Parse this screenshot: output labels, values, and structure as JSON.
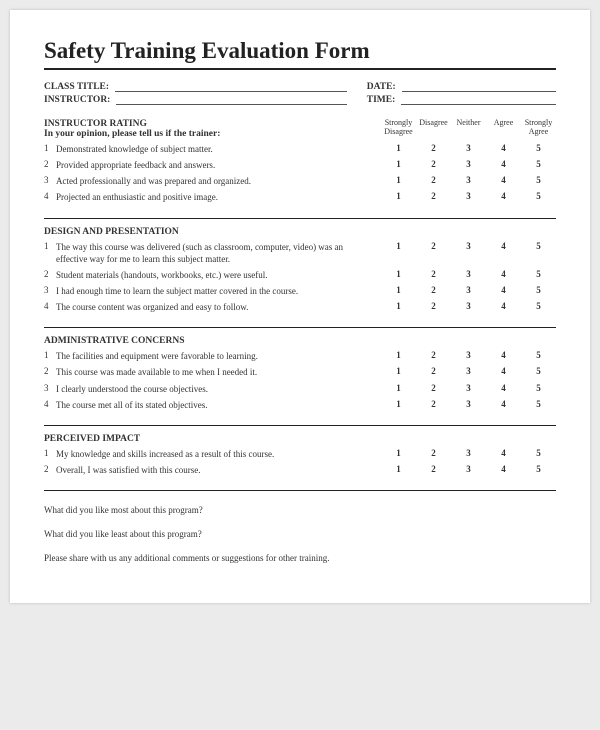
{
  "title": "Safety Training Evaluation Form",
  "meta": {
    "class_label": "CLASS TITLE:",
    "instructor_label": "INSTRUCTOR:",
    "date_label": "DATE:",
    "time_label": "TIME:"
  },
  "scale_headers": [
    "Strongly\nDisagree",
    "Disagree",
    "Neither",
    "Agree",
    "Strongly\nAgree"
  ],
  "scale_values": [
    "1",
    "2",
    "3",
    "4",
    "5"
  ],
  "sections": [
    {
      "heading": "INSTRUCTOR RATING",
      "subheading": "In your opinion, please tell us if the trainer:",
      "items": [
        "Demonstrated knowledge of subject matter.",
        "Provided appropriate feedback and answers.",
        "Acted professionally and was prepared and organized.",
        "Projected an enthusiastic and positive image."
      ]
    },
    {
      "heading": "DESIGN AND PRESENTATION",
      "subheading": "",
      "items": [
        "The way this course was delivered (such as classroom, computer, video) was an effective way for me to learn this subject matter.",
        "Student materials (handouts, workbooks, etc.) were  useful.",
        "I had enough time to learn the subject matter covered in the course.",
        "The course content was organized and easy to follow."
      ]
    },
    {
      "heading": "ADMINISTRATIVE CONCERNS",
      "subheading": "",
      "items": [
        "The facilities and equipment were favorable to learning.",
        "This course was made available to me when I needed it.",
        "I clearly understood the course objectives.",
        "The course met all of its stated objectives."
      ]
    },
    {
      "heading": "PERCEIVED IMPACT",
      "subheading": "",
      "items": [
        "My knowledge and skills increased as a result of this course.",
        "Overall, I was satisfied with this course."
      ]
    }
  ],
  "open_questions": [
    "What did you like most about this program?",
    "What did you like least about this program?",
    "Please share with us any additional comments or suggestions for other training."
  ]
}
